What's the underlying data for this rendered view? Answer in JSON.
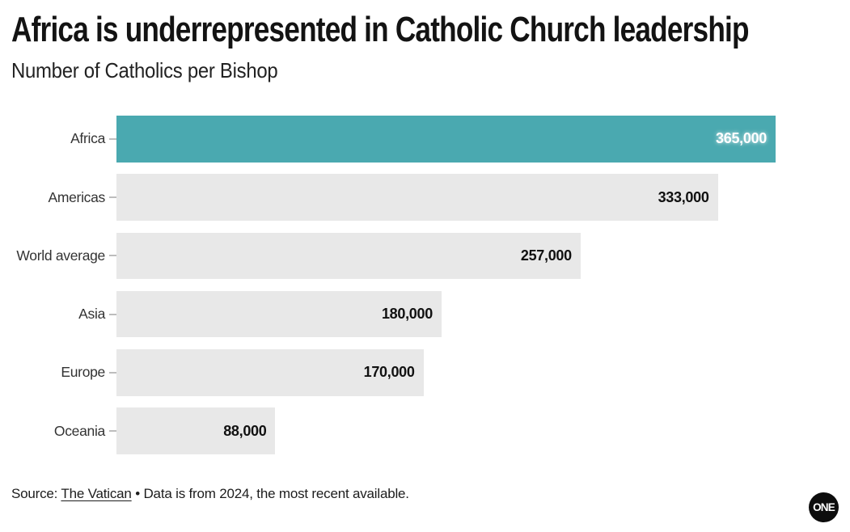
{
  "header": {
    "title": "Africa is underrepresented in Catholic Church leadership",
    "subtitle": "Number of Catholics per Bishop"
  },
  "chart_data": {
    "type": "bar",
    "orientation": "horizontal",
    "title": "Africa is underrepresented in Catholic Church leadership",
    "subtitle": "Number of Catholics per Bishop",
    "categories": [
      "Africa",
      "Americas",
      "World average",
      "Asia",
      "Europe",
      "Oceania"
    ],
    "values": [
      365000,
      333000,
      257000,
      180000,
      170000,
      88000
    ],
    "value_labels": [
      "365,000",
      "333,000",
      "257,000",
      "180,000",
      "170,000",
      "88,000"
    ],
    "xlim": [
      0,
      365000
    ],
    "grid": "off",
    "legend": "none",
    "highlight_index": 0,
    "colors": {
      "highlight_bar": "#4AA9B0",
      "default_bar": "#E8E8E8",
      "highlight_value_text": "#FFFFFF",
      "default_value_text": "#111111",
      "tick": "#BDBDBD"
    }
  },
  "footer": {
    "source_prefix": "Source: ",
    "source_link": "The Vatican",
    "source_separator": " • ",
    "source_suffix": "Data is from 2024, the most recent available.",
    "logo_text": "ONE"
  }
}
